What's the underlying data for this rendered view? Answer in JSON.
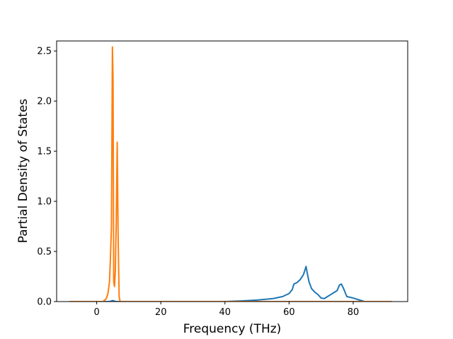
{
  "chart_data": {
    "type": "line",
    "title": "",
    "xlabel": "Frequency (THz)",
    "ylabel": "Partial Density of States",
    "xlim": [
      -12.5,
      97
    ],
    "ylim": [
      0,
      2.6
    ],
    "xticks": [
      0,
      20,
      40,
      60,
      80
    ],
    "xtick_labels": [
      "0",
      "20",
      "40",
      "60",
      "80"
    ],
    "yticks": [
      0.0,
      0.5,
      1.0,
      1.5,
      2.0,
      2.5
    ],
    "ytick_labels": [
      "0.0",
      "0.5",
      "1.0",
      "1.5",
      "2.0",
      "2.5"
    ],
    "grid": false,
    "legend": "none",
    "series": [
      {
        "color": "#1f77b4",
        "x": [
          -8.5,
          4.0,
          5.0,
          6.0,
          7.5,
          40,
          45,
          50,
          55,
          58,
          60,
          61,
          61.5,
          62.5,
          63.5,
          64.5,
          65.3,
          65.7,
          66.2,
          67,
          68,
          69,
          70,
          71,
          72,
          73,
          74,
          75,
          75.7,
          76.3,
          77,
          78,
          80,
          82,
          83.5,
          92
        ],
        "y": [
          0.0,
          0.0,
          0.01,
          0.0,
          0.0,
          0.0,
          0.006,
          0.015,
          0.03,
          0.05,
          0.08,
          0.12,
          0.175,
          0.19,
          0.22,
          0.27,
          0.35,
          0.28,
          0.2,
          0.13,
          0.095,
          0.07,
          0.035,
          0.03,
          0.05,
          0.07,
          0.09,
          0.11,
          0.165,
          0.175,
          0.13,
          0.05,
          0.035,
          0.015,
          0.0,
          0.0
        ]
      },
      {
        "color": "#ff7f0e",
        "x": [
          -8.5,
          2.0,
          3.0,
          3.5,
          4.0,
          4.3,
          4.6,
          4.9,
          5.1,
          5.3,
          5.55,
          5.8,
          6.1,
          6.4,
          6.7,
          7.0,
          7.3,
          8.0,
          92
        ],
        "y": [
          0.0,
          0.0,
          0.03,
          0.08,
          0.2,
          0.45,
          0.75,
          2.54,
          2.2,
          0.2,
          0.15,
          0.3,
          0.8,
          1.59,
          0.6,
          0.05,
          0.0,
          0.0,
          0.0
        ]
      }
    ]
  }
}
